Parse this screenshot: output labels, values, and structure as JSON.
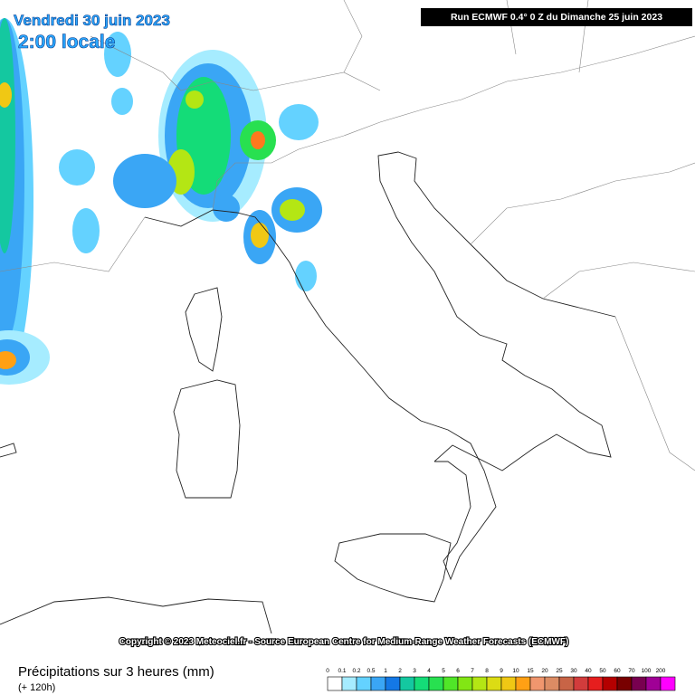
{
  "header": {
    "date": "Vendredi 30 juin 2023",
    "time": "2:00 locale",
    "run": "Run ECMWF 0.4° 0 Z du Dimanche 25 juin 2023"
  },
  "copyright": "Copyright © 2023 Meteociel.fr - Source European Centre for Medium-Range Weather Forecasts (ECMWF)",
  "footer": {
    "title": "Précipitations sur 3 heures (mm)",
    "lead": "(+ 120h)"
  },
  "legend": [
    {
      "label": "0",
      "color": "#ffffff"
    },
    {
      "label": "0.1",
      "color": "#a6ecff"
    },
    {
      "label": "0.2",
      "color": "#64d2ff"
    },
    {
      "label": "0.5",
      "color": "#3aa6f5"
    },
    {
      "label": "1",
      "color": "#1478e6"
    },
    {
      "label": "2",
      "color": "#14c8a0"
    },
    {
      "label": "3",
      "color": "#14dc78"
    },
    {
      "label": "4",
      "color": "#28e050"
    },
    {
      "label": "5",
      "color": "#50e628"
    },
    {
      "label": "6",
      "color": "#82e614"
    },
    {
      "label": "7",
      "color": "#b4e614"
    },
    {
      "label": "8",
      "color": "#dcdc14"
    },
    {
      "label": "9",
      "color": "#f0c814"
    },
    {
      "label": "10",
      "color": "#ffa014"
    },
    {
      "label": "15",
      "color": "#f0966e"
    },
    {
      "label": "20",
      "color": "#dc8c64"
    },
    {
      "label": "25",
      "color": "#c86446"
    },
    {
      "label": "30",
      "color": "#d23c3c"
    },
    {
      "label": "40",
      "color": "#e61e1e"
    },
    {
      "label": "50",
      "color": "#b40000"
    },
    {
      "label": "60",
      "color": "#780000"
    },
    {
      "label": "70",
      "color": "#780050"
    },
    {
      "label": "100",
      "color": "#a00096"
    },
    {
      "label": "200",
      "color": "#ff00ff"
    }
  ]
}
